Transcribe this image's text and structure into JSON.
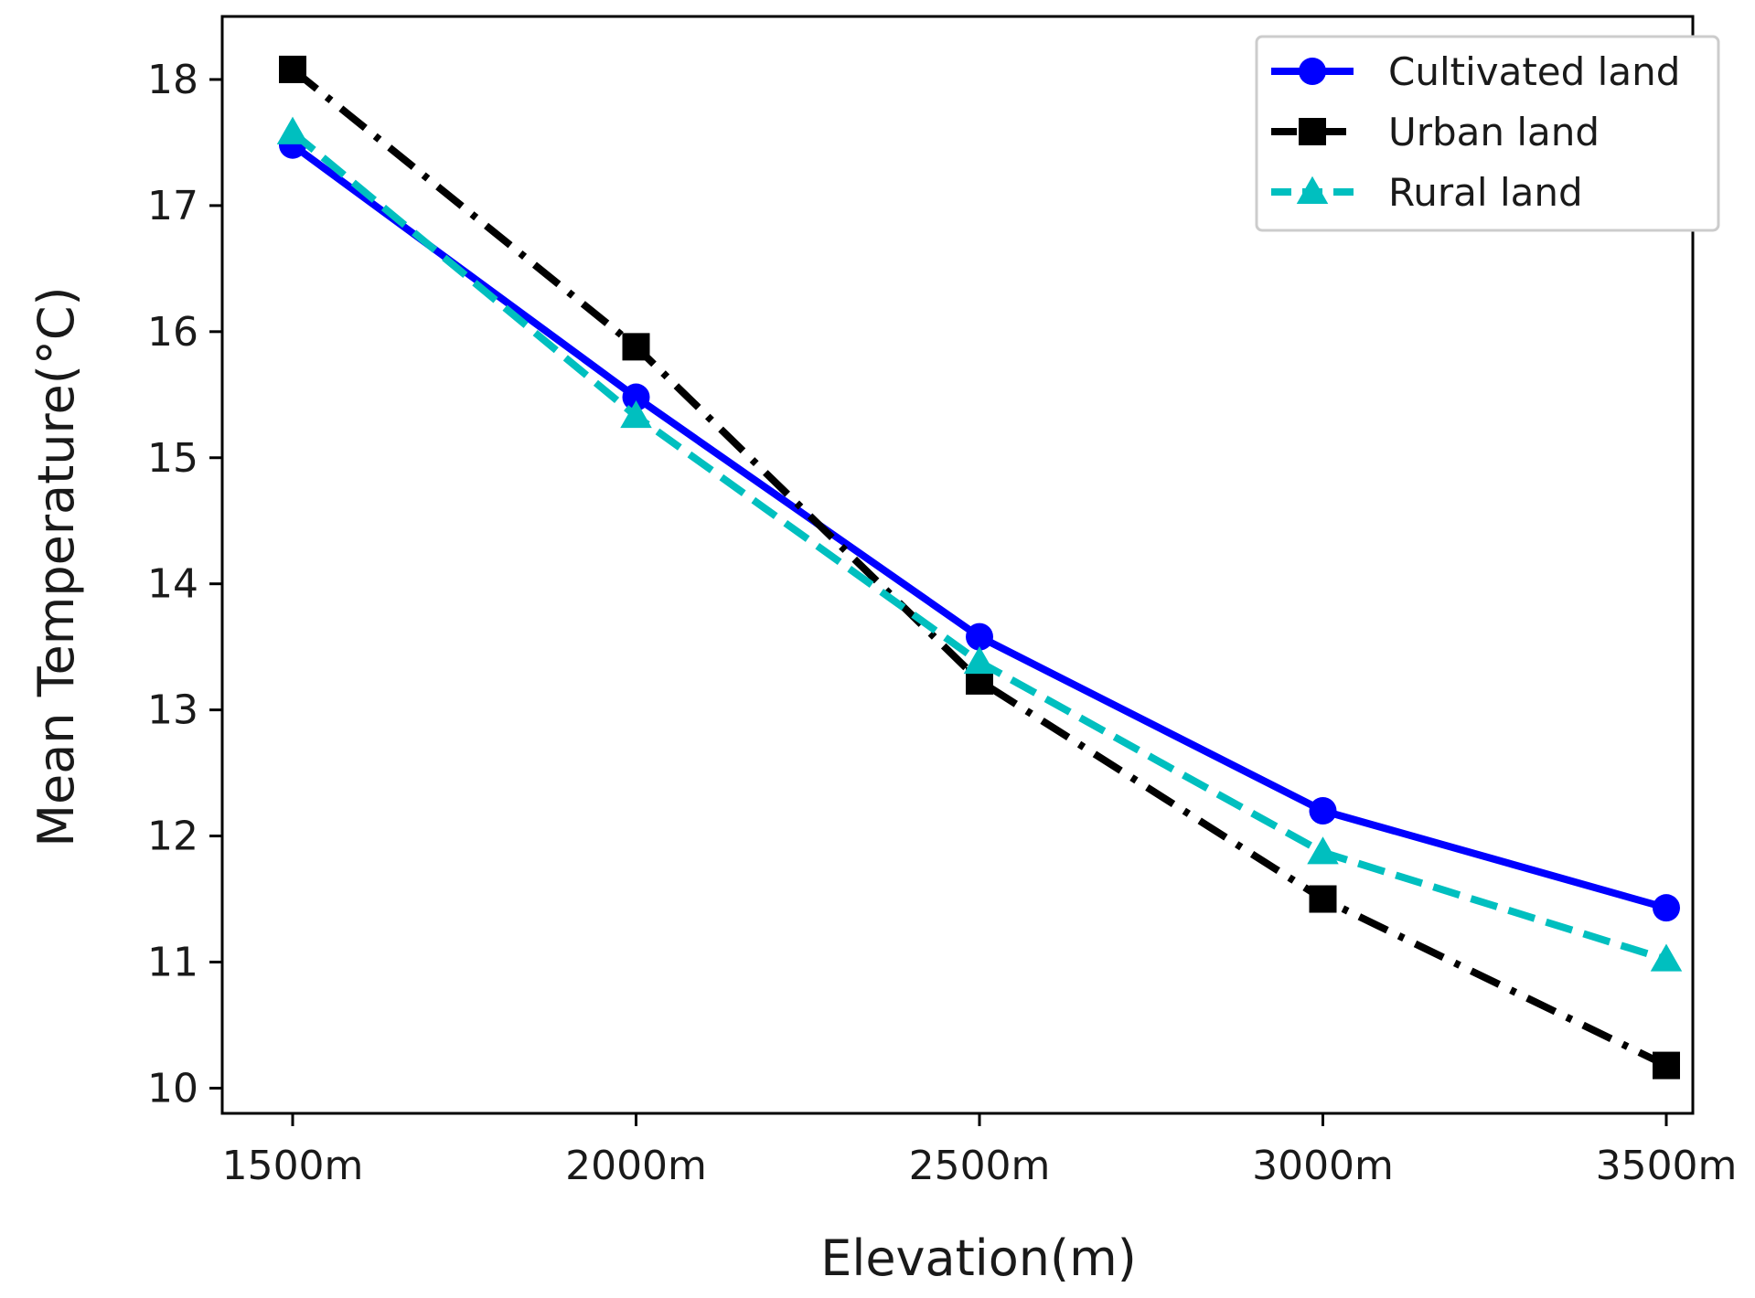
{
  "chart_data": {
    "type": "line",
    "title": "",
    "xlabel": "Elevation(m)",
    "ylabel": "Mean Temperature(°C)",
    "categories": [
      "1500m",
      "2000m",
      "2500m",
      "3000m",
      "3500m"
    ],
    "ylim": [
      9.8,
      18.5
    ],
    "yticks": [
      10,
      11,
      12,
      13,
      14,
      15,
      16,
      17,
      18
    ],
    "grid": false,
    "legend_position": "top-right",
    "series": [
      {
        "name": "Cultivated land",
        "color": "#0000ff",
        "marker": "circle",
        "linestyle": "solid",
        "values": [
          17.48,
          15.48,
          13.58,
          12.2,
          11.43
        ]
      },
      {
        "name": "Urban land",
        "color": "#000000",
        "marker": "square",
        "linestyle": "dashdot",
        "values": [
          18.08,
          15.88,
          13.23,
          11.5,
          10.18
        ]
      },
      {
        "name": "Rural land",
        "color": "#00bfbf",
        "marker": "triangle",
        "linestyle": "dashed",
        "values": [
          17.58,
          15.33,
          13.38,
          11.87,
          11.02
        ]
      }
    ]
  }
}
